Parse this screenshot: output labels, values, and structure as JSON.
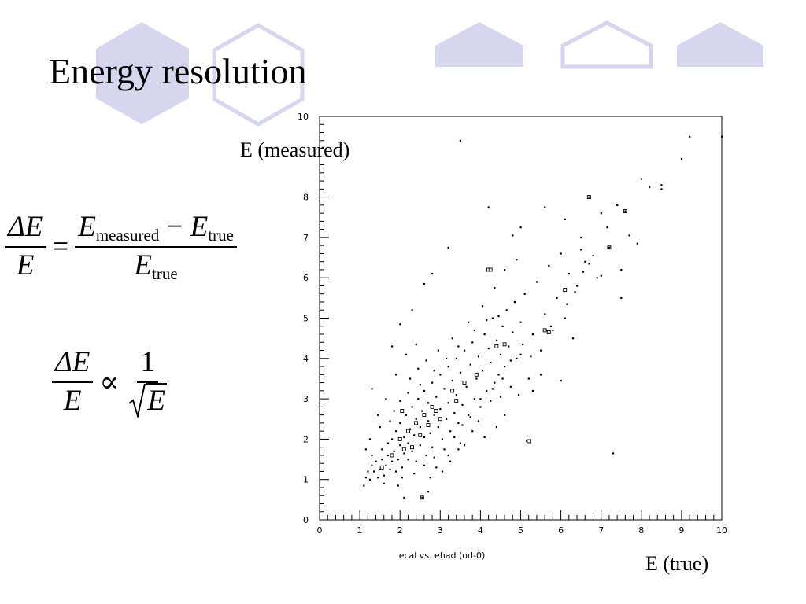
{
  "slide": {
    "title": "Energy resolution",
    "colors": {
      "decoration": "#d6d6ee",
      "text": "#000000"
    }
  },
  "equations": {
    "resolution": {
      "lhs_num": "ΔE",
      "lhs_den": "E",
      "equals": "=",
      "rhs_num_a": "E",
      "rhs_num_a_sub": "measured",
      "minus": "−",
      "rhs_num_b": "E",
      "rhs_num_b_sub": "true",
      "rhs_den": "E",
      "rhs_den_sub": "true"
    },
    "scaling": {
      "lhs_num": "ΔE",
      "lhs_den": "E",
      "proportional": "∝",
      "rhs_num": "1",
      "rhs_den": "E"
    }
  },
  "axis_captions": {
    "y": "E (measured)",
    "x": "E (true)"
  },
  "chart_data": {
    "type": "scatter",
    "title": "ecal vs. ehad (od-0)",
    "xlim": [
      0,
      10
    ],
    "ylim": [
      0,
      10
    ],
    "x_ticks": [
      "0",
      "1",
      "2",
      "3",
      "4",
      "5",
      "6",
      "7",
      "8",
      "9",
      "10"
    ],
    "y_ticks": [
      "0",
      "1",
      "2",
      "3",
      "4",
      "5",
      "6",
      "7",
      "8",
      "10"
    ],
    "grid": false,
    "points": [
      [
        1.1,
        0.85
      ],
      [
        1.15,
        1.05
      ],
      [
        1.2,
        1.2
      ],
      [
        1.25,
        1.0
      ],
      [
        1.3,
        1.35
      ],
      [
        1.3,
        1.6
      ],
      [
        1.35,
        1.2
      ],
      [
        1.4,
        1.45
      ],
      [
        1.45,
        1.05
      ],
      [
        1.5,
        1.25
      ],
      [
        1.55,
        1.5
      ],
      [
        1.55,
        1.75
      ],
      [
        1.6,
        1.1
      ],
      [
        1.65,
        1.35
      ],
      [
        1.7,
        1.6
      ],
      [
        1.7,
        1.9
      ],
      [
        1.75,
        1.25
      ],
      [
        1.8,
        1.45
      ],
      [
        1.8,
        2.0
      ],
      [
        1.85,
        1.7
      ],
      [
        1.9,
        1.2
      ],
      [
        1.9,
        2.2
      ],
      [
        1.95,
        1.5
      ],
      [
        2.0,
        1.85
      ],
      [
        2.0,
        2.4
      ],
      [
        2.05,
        1.3
      ],
      [
        2.1,
        1.65
      ],
      [
        2.1,
        2.05
      ],
      [
        2.15,
        2.6
      ],
      [
        2.2,
        1.5
      ],
      [
        2.2,
        1.9
      ],
      [
        2.25,
        2.25
      ],
      [
        2.3,
        2.8
      ],
      [
        2.3,
        1.7
      ],
      [
        2.35,
        2.1
      ],
      [
        2.4,
        2.5
      ],
      [
        2.4,
        1.45
      ],
      [
        2.45,
        3.0
      ],
      [
        2.5,
        1.85
      ],
      [
        2.5,
        2.3
      ],
      [
        2.55,
        2.7
      ],
      [
        2.6,
        2.05
      ],
      [
        2.6,
        3.2
      ],
      [
        2.65,
        1.6
      ],
      [
        2.7,
        2.45
      ],
      [
        2.7,
        2.9
      ],
      [
        2.75,
        2.15
      ],
      [
        2.8,
        3.4
      ],
      [
        2.8,
        1.8
      ],
      [
        2.85,
        2.6
      ],
      [
        2.9,
        3.05
      ],
      [
        2.95,
        2.3
      ],
      [
        3.0,
        2.75
      ],
      [
        3.0,
        3.6
      ],
      [
        3.05,
        2.0
      ],
      [
        3.1,
        3.25
      ],
      [
        3.15,
        2.5
      ],
      [
        3.2,
        3.8
      ],
      [
        3.2,
        2.9
      ],
      [
        3.25,
        2.2
      ],
      [
        3.3,
        3.45
      ],
      [
        3.35,
        2.65
      ],
      [
        3.4,
        4.0
      ],
      [
        3.4,
        3.1
      ],
      [
        3.45,
        2.4
      ],
      [
        3.5,
        3.65
      ],
      [
        3.55,
        2.85
      ],
      [
        3.6,
        4.2
      ],
      [
        3.65,
        3.3
      ],
      [
        3.7,
        2.6
      ],
      [
        3.75,
        3.85
      ],
      [
        3.8,
        4.4
      ],
      [
        3.85,
        3.0
      ],
      [
        3.9,
        3.5
      ],
      [
        3.95,
        4.05
      ],
      [
        4.0,
        2.8
      ],
      [
        4.05,
        3.7
      ],
      [
        4.1,
        4.6
      ],
      [
        4.15,
        3.2
      ],
      [
        4.2,
        4.25
      ],
      [
        4.25,
        3.9
      ],
      [
        4.3,
        5.0
      ],
      [
        4.35,
        3.4
      ],
      [
        4.4,
        4.45
      ],
      [
        4.45,
        3.6
      ],
      [
        4.5,
        4.1
      ],
      [
        4.55,
        4.8
      ],
      [
        4.6,
        3.8
      ],
      [
        4.65,
        5.2
      ],
      [
        4.7,
        4.3
      ],
      [
        4.75,
        3.3
      ],
      [
        4.8,
        4.65
      ],
      [
        4.85,
        5.4
      ],
      [
        4.9,
        4.0
      ],
      [
        4.95,
        3.1
      ],
      [
        5.0,
        4.9
      ],
      [
        5.05,
        4.35
      ],
      [
        5.1,
        5.6
      ],
      [
        5.2,
        3.5
      ],
      [
        5.3,
        4.6
      ],
      [
        5.4,
        5.9
      ],
      [
        5.5,
        4.2
      ],
      [
        5.6,
        5.1
      ],
      [
        5.7,
        6.3
      ],
      [
        5.8,
        4.7
      ],
      [
        5.9,
        5.5
      ],
      [
        6.0,
        6.6
      ],
      [
        6.1,
        5.0
      ],
      [
        6.2,
        6.1
      ],
      [
        6.3,
        4.5
      ],
      [
        6.4,
        5.8
      ],
      [
        6.5,
        7.0
      ],
      [
        6.6,
        6.4
      ],
      [
        6.7,
        8.0
      ],
      [
        6.9,
        6.0
      ],
      [
        7.0,
        7.6
      ],
      [
        7.2,
        6.75
      ],
      [
        7.3,
        1.65
      ],
      [
        7.4,
        7.8
      ],
      [
        7.5,
        6.2
      ],
      [
        7.6,
        7.65
      ],
      [
        7.9,
        6.85
      ],
      [
        8.0,
        8.45
      ],
      [
        8.2,
        8.25
      ],
      [
        8.5,
        8.3
      ],
      [
        9.0,
        8.95
      ],
      [
        9.2,
        9.5
      ],
      [
        10.0,
        9.5
      ],
      [
        3.5,
        9.4
      ],
      [
        4.2,
        7.75
      ],
      [
        5.0,
        7.25
      ],
      [
        4.8,
        7.05
      ],
      [
        3.2,
        6.75
      ],
      [
        2.8,
        6.1
      ],
      [
        2.6,
        5.85
      ],
      [
        2.3,
        5.2
      ],
      [
        2.0,
        4.85
      ],
      [
        1.8,
        4.3
      ],
      [
        1.3,
        3.25
      ],
      [
        1.5,
        2.3
      ],
      [
        2.1,
        0.55
      ],
      [
        2.55,
        0.55
      ],
      [
        2.7,
        0.7
      ],
      [
        3.5,
        1.9
      ],
      [
        4.4,
        2.3
      ],
      [
        5.15,
        1.95
      ],
      [
        3.2,
        1.6
      ],
      [
        2.9,
        1.3
      ],
      [
        1.95,
        0.85
      ],
      [
        1.6,
        0.9
      ],
      [
        2.25,
        3.5
      ],
      [
        2.45,
        3.75
      ],
      [
        2.65,
        3.95
      ],
      [
        2.95,
        4.2
      ],
      [
        3.3,
        4.5
      ],
      [
        3.7,
        4.9
      ],
      [
        4.05,
        5.3
      ],
      [
        4.35,
        5.75
      ],
      [
        4.6,
        6.2
      ],
      [
        4.9,
        6.45
      ],
      [
        5.6,
        7.75
      ],
      [
        6.1,
        7.45
      ],
      [
        6.5,
        6.7
      ],
      [
        6.7,
        6.35
      ],
      [
        7.0,
        6.05
      ],
      [
        7.5,
        5.5
      ],
      [
        5.3,
        3.2
      ],
      [
        5.5,
        3.6
      ],
      [
        6.0,
        3.45
      ],
      [
        4.6,
        2.6
      ],
      [
        3.8,
        2.2
      ],
      [
        4.1,
        2.05
      ],
      [
        3.6,
        1.85
      ],
      [
        2.4,
        4.35
      ],
      [
        2.15,
        4.1
      ],
      [
        1.9,
        3.6
      ],
      [
        1.65,
        3.0
      ],
      [
        1.45,
        2.6
      ],
      [
        1.25,
        2.0
      ],
      [
        1.15,
        1.75
      ],
      [
        2.75,
        1.05
      ],
      [
        3.05,
        1.2
      ],
      [
        3.25,
        1.45
      ],
      [
        3.45,
        1.75
      ],
      [
        3.95,
        2.45
      ],
      [
        4.25,
        2.95
      ],
      [
        4.5,
        3.05
      ],
      [
        5.25,
        4.05
      ],
      [
        5.75,
        4.8
      ],
      [
        6.15,
        5.35
      ],
      [
        6.35,
        5.65
      ],
      [
        6.55,
        6.15
      ],
      [
        6.8,
        6.55
      ],
      [
        7.15,
        7.25
      ],
      [
        7.7,
        7.05
      ],
      [
        8.5,
        8.2
      ],
      [
        2.0,
        2.95
      ],
      [
        2.2,
        3.15
      ],
      [
        2.5,
        3.35
      ],
      [
        2.85,
        3.7
      ],
      [
        3.15,
        4.0
      ],
      [
        3.45,
        4.3
      ],
      [
        3.85,
        4.7
      ],
      [
        4.15,
        4.95
      ],
      [
        4.45,
        5.05
      ],
      [
        1.75,
        2.45
      ],
      [
        1.85,
        2.7
      ],
      [
        2.05,
        1.05
      ],
      [
        2.35,
        1.15
      ],
      [
        2.6,
        1.35
      ],
      [
        2.85,
        1.55
      ],
      [
        3.1,
        1.75
      ],
      [
        3.35,
        2.05
      ],
      [
        3.55,
        2.35
      ],
      [
        3.75,
        2.55
      ],
      [
        4.0,
        3.0
      ],
      [
        4.3,
        3.25
      ],
      [
        4.55,
        3.5
      ],
      [
        4.75,
        3.95
      ],
      [
        5.0,
        4.1
      ]
    ],
    "box_points": [
      [
        2.0,
        2.0
      ],
      [
        2.2,
        2.2
      ],
      [
        2.4,
        2.4
      ],
      [
        2.6,
        2.6
      ],
      [
        2.8,
        2.8
      ],
      [
        2.3,
        1.8
      ],
      [
        2.5,
        2.1
      ],
      [
        2.7,
        2.35
      ],
      [
        3.0,
        2.5
      ],
      [
        1.8,
        1.6
      ],
      [
        2.1,
        1.75
      ],
      [
        2.9,
        2.7
      ],
      [
        3.3,
        3.2
      ],
      [
        3.6,
        3.4
      ],
      [
        3.9,
        3.6
      ],
      [
        4.2,
        6.2
      ],
      [
        4.25,
        6.2
      ],
      [
        6.7,
        8.0
      ],
      [
        7.2,
        6.75
      ],
      [
        7.6,
        7.65
      ],
      [
        5.6,
        4.7
      ],
      [
        5.7,
        4.65
      ],
      [
        6.1,
        5.7
      ],
      [
        5.2,
        1.95
      ],
      [
        4.4,
        4.3
      ],
      [
        4.6,
        4.35
      ],
      [
        2.55,
        0.55
      ],
      [
        1.55,
        1.3
      ],
      [
        2.05,
        2.7
      ],
      [
        3.4,
        2.95
      ]
    ]
  }
}
